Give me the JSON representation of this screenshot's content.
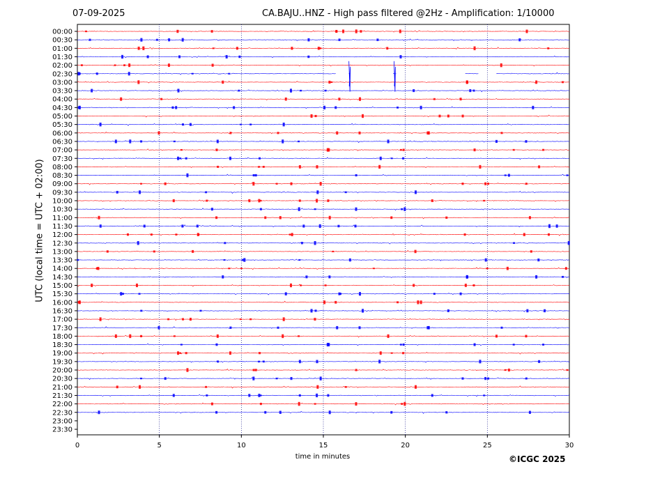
{
  "header": {
    "date": "07-09-2025",
    "title": "CA.BAJU..HNZ - High pass filtered @2Hz - Amplification: 1/10000"
  },
  "footer": {
    "copyright": "©ICGC 2025"
  },
  "chart_data": {
    "type": "line",
    "subtype": "helicorder",
    "xlabel": "time in minutes",
    "ylabel": "UTC (local time = UTC + 02:00)",
    "xlim": [
      0,
      30
    ],
    "x_ticks": [
      0,
      5,
      10,
      15,
      20,
      25,
      30
    ],
    "grid": "vertical dotted lines at x ticks",
    "series_colors": [
      "#ff0000",
      "#0000ff"
    ],
    "rows": [
      "00:00",
      "00:30",
      "01:00",
      "01:30",
      "02:00",
      "02:30",
      "03:00",
      "03:30",
      "04:00",
      "04:30",
      "05:00",
      "05:30",
      "06:00",
      "06:30",
      "07:00",
      "07:30",
      "08:00",
      "08:30",
      "09:00",
      "09:30",
      "10:00",
      "10:30",
      "11:00",
      "11:30",
      "12:00",
      "12:30",
      "13:00",
      "13:30",
      "14:00",
      "14:30",
      "15:00",
      "15:30",
      "16:00",
      "16:30",
      "17:00",
      "17:30",
      "18:00",
      "18:30",
      "19:00",
      "19:30",
      "20:00",
      "20:30",
      "21:00",
      "21:30",
      "22:00",
      "22:30",
      "23:00",
      "23:30"
    ],
    "data_gaps": [
      {
        "row": "02:30",
        "from_min": 15.8,
        "to_min": 16.5
      },
      {
        "row": "02:30",
        "from_min": 16.7,
        "to_min": 19.2
      },
      {
        "row": "02:30",
        "from_min": 19.5,
        "to_min": 23.6
      },
      {
        "row": "02:30",
        "from_min": 24.5,
        "to_min": 25.5
      }
    ],
    "spikes": [
      {
        "row": "02:30",
        "minute": 16.6
      },
      {
        "row": "02:30",
        "minute": 19.35
      }
    ],
    "data_end": {
      "row": "22:30",
      "minute": 30
    }
  }
}
